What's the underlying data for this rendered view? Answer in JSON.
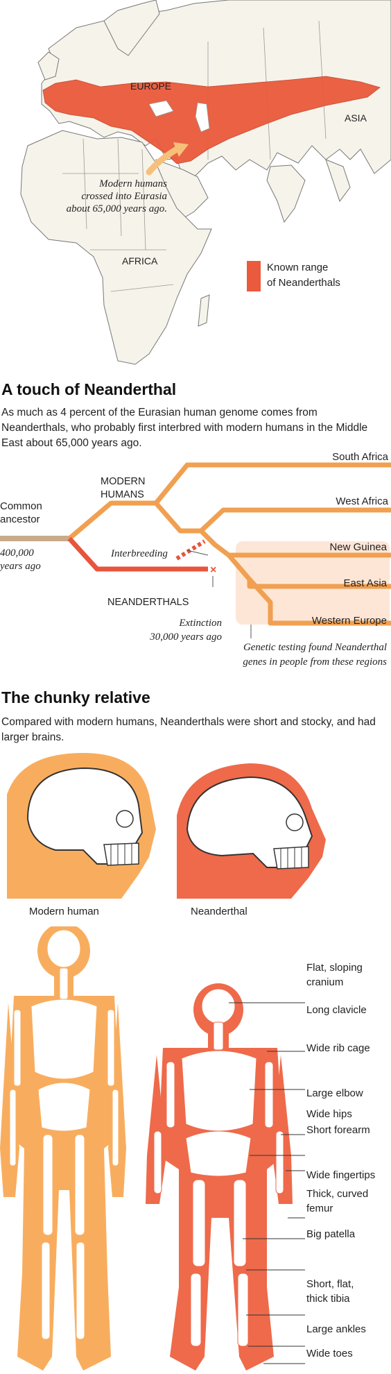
{
  "colors": {
    "modern": "#f0a050",
    "neanderthal": "#e8543c",
    "range": "#ea5a3c",
    "highlight_box": "#fde6d6",
    "ancestor_line": "#c8ab8a"
  },
  "map": {
    "labels": {
      "europe": "EUROPE",
      "asia": "ASIA",
      "africa": "AFRICA"
    },
    "annotation": "Modern humans crossed into Eurasia about 65,000 years ago.",
    "annotation_lines": [
      "Modern humans",
      "crossed into Eurasia",
      "about 65,000 years ago."
    ],
    "legend": {
      "label_lines": [
        "Known range",
        "of Neanderthals"
      ],
      "label": "Known range of Neanderthals"
    }
  },
  "touch": {
    "title": "A touch of Neanderthal",
    "intro": "As much as 4 percent of the Eurasian human genome comes from Neanderthals, who probably first interbred with modern humans in the Middle East about 65,000 years ago.",
    "tree": {
      "common_ancestor_lines": [
        "Common",
        "ancestor"
      ],
      "ancestor_time_lines": [
        "400,000",
        "years ago"
      ],
      "modern_humans_lines": [
        "MODERN",
        "HUMANS"
      ],
      "neanderthals": "NEANDERTHALS",
      "interbreeding": "Interbreeding",
      "extinction_lines": [
        "Extinction",
        "30,000 years ago"
      ],
      "regions": [
        "South Africa",
        "West Africa",
        "New Guinea",
        "East Asia",
        "Western Europe"
      ],
      "genetic_note_lines": [
        "Genetic testing found Neanderthal",
        "genes in people from these regions"
      ]
    }
  },
  "chunky": {
    "title": "The chunky relative",
    "intro": "Compared with modern humans, Neanderthals were short and stocky, and had larger brains.",
    "captions": {
      "modern": "Modern human",
      "neanderthal": "Neanderthal"
    },
    "callouts": [
      [
        "Flat, sloping",
        "cranium"
      ],
      [
        "Long clavicle"
      ],
      [
        "Wide rib cage"
      ],
      [
        "Large elbow"
      ],
      [
        "Wide hips"
      ],
      [
        "Short forearm"
      ],
      [
        "Wide fingertips"
      ],
      [
        "Thick, curved",
        "femur"
      ],
      [
        "Big patella"
      ],
      [
        "Short, flat,",
        "thick tibia"
      ],
      [
        "Large ankles"
      ],
      [
        "Wide toes"
      ]
    ]
  }
}
